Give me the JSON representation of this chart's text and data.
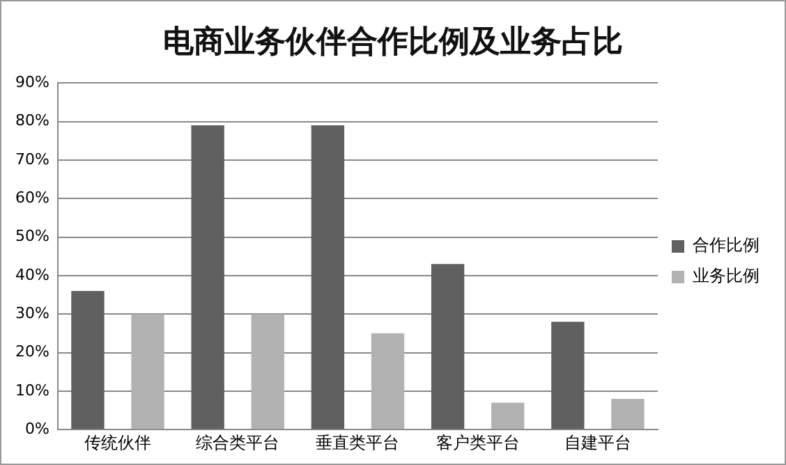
{
  "chart_data": {
    "type": "bar",
    "title": "电商业务伙伴合作比例及业务占比",
    "categories": [
      "传统伙伴",
      "综合类平台",
      "垂直类平台",
      "客户类平台",
      "自建平台"
    ],
    "series": [
      {
        "name": "合作比例",
        "color": "#606060",
        "values": [
          36,
          79,
          79,
          43,
          28
        ]
      },
      {
        "name": "业务比例",
        "color": "#b2b2b2",
        "values": [
          30,
          30,
          25,
          7,
          8
        ]
      }
    ],
    "ylim": [
      0,
      90
    ],
    "yticks": [
      {
        "value": 0,
        "label": "0%"
      },
      {
        "value": 10,
        "label": "10%"
      },
      {
        "value": 20,
        "label": "20%"
      },
      {
        "value": 30,
        "label": "30%"
      },
      {
        "value": 40,
        "label": "40%"
      },
      {
        "value": 50,
        "label": "50%"
      },
      {
        "value": 60,
        "label": "60%"
      },
      {
        "value": 70,
        "label": "70%"
      },
      {
        "value": 80,
        "label": "80%"
      },
      {
        "value": 90,
        "label": "90%"
      }
    ],
    "grid": "y",
    "legend": "right"
  }
}
